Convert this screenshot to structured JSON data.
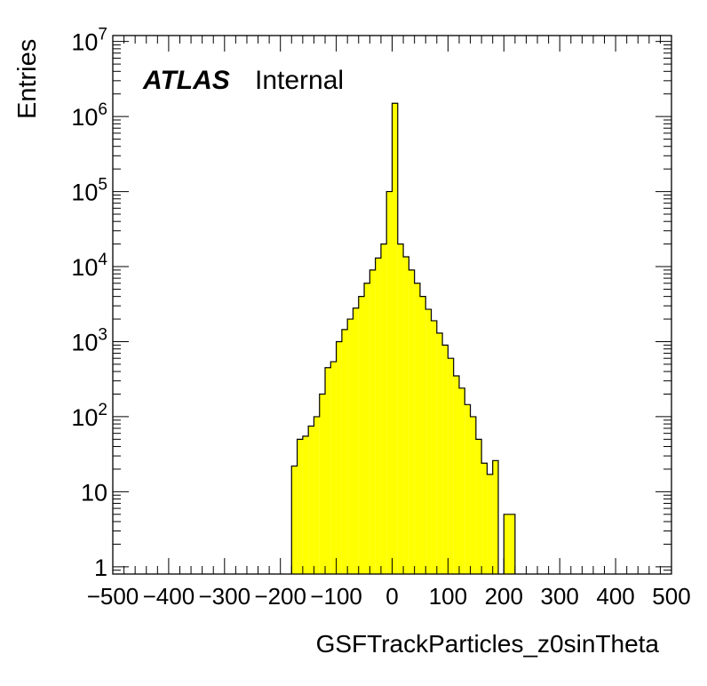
{
  "chart_data": {
    "type": "histogram",
    "title": "",
    "label_atlas": "ATLAS",
    "label_status": "Internal",
    "xlabel": "GSFTrackParticles_z0sinTheta",
    "ylabel": "Entries",
    "xlim": [
      -500,
      500
    ],
    "ylim": [
      0.8,
      12000000
    ],
    "yscale": "log",
    "grid": false,
    "fill_color": "#ffff00",
    "line_color": "#000000",
    "bin_width": 10,
    "xticks": [
      -500,
      -400,
      -300,
      -200,
      -100,
      0,
      100,
      200,
      300,
      400,
      500
    ],
    "xtick_labels": [
      "−500",
      "−400",
      "−300",
      "−200",
      "−100",
      "0",
      "100",
      "200",
      "300",
      "400",
      "500"
    ],
    "yticks": [
      {
        "value": 1,
        "base": "1",
        "exp": ""
      },
      {
        "value": 10,
        "base": "10",
        "exp": ""
      },
      {
        "value": 100,
        "base": "10",
        "exp": "2"
      },
      {
        "value": 1000,
        "base": "10",
        "exp": "3"
      },
      {
        "value": 10000,
        "base": "10",
        "exp": "4"
      },
      {
        "value": 100000,
        "base": "10",
        "exp": "5"
      },
      {
        "value": 1000000,
        "base": "10",
        "exp": "6"
      },
      {
        "value": 10000000,
        "base": "10",
        "exp": "7"
      }
    ],
    "bins": [
      {
        "x0": -180,
        "x1": -170,
        "y": 22
      },
      {
        "x0": -170,
        "x1": -160,
        "y": 50
      },
      {
        "x0": -160,
        "x1": -150,
        "y": 55
      },
      {
        "x0": -150,
        "x1": -140,
        "y": 75
      },
      {
        "x0": -140,
        "x1": -130,
        "y": 100
      },
      {
        "x0": -130,
        "x1": -120,
        "y": 200
      },
      {
        "x0": -120,
        "x1": -110,
        "y": 450
      },
      {
        "x0": -110,
        "x1": -100,
        "y": 540
      },
      {
        "x0": -100,
        "x1": -90,
        "y": 1000
      },
      {
        "x0": -90,
        "x1": -80,
        "y": 1450
      },
      {
        "x0": -80,
        "x1": -70,
        "y": 2000
      },
      {
        "x0": -70,
        "x1": -60,
        "y": 2800
      },
      {
        "x0": -60,
        "x1": -50,
        "y": 4000
      },
      {
        "x0": -50,
        "x1": -40,
        "y": 6000
      },
      {
        "x0": -40,
        "x1": -30,
        "y": 9000
      },
      {
        "x0": -30,
        "x1": -20,
        "y": 13000
      },
      {
        "x0": -20,
        "x1": -10,
        "y": 20000
      },
      {
        "x0": -10,
        "x1": 0,
        "y": 100000
      },
      {
        "x0": 0,
        "x1": 10,
        "y": 1500000
      },
      {
        "x0": 10,
        "x1": 20,
        "y": 20000
      },
      {
        "x0": 20,
        "x1": 30,
        "y": 13500
      },
      {
        "x0": 30,
        "x1": 40,
        "y": 9000
      },
      {
        "x0": 40,
        "x1": 50,
        "y": 6000
      },
      {
        "x0": 50,
        "x1": 60,
        "y": 4000
      },
      {
        "x0": 60,
        "x1": 70,
        "y": 2700
      },
      {
        "x0": 70,
        "x1": 80,
        "y": 1900
      },
      {
        "x0": 80,
        "x1": 90,
        "y": 1300
      },
      {
        "x0": 90,
        "x1": 100,
        "y": 900
      },
      {
        "x0": 100,
        "x1": 110,
        "y": 600
      },
      {
        "x0": 110,
        "x1": 120,
        "y": 350
      },
      {
        "x0": 120,
        "x1": 130,
        "y": 240
      },
      {
        "x0": 130,
        "x1": 140,
        "y": 145
      },
      {
        "x0": 140,
        "x1": 150,
        "y": 100
      },
      {
        "x0": 150,
        "x1": 160,
        "y": 50
      },
      {
        "x0": 160,
        "x1": 170,
        "y": 24
      },
      {
        "x0": 170,
        "x1": 180,
        "y": 17
      },
      {
        "x0": 180,
        "x1": 190,
        "y": 26
      },
      {
        "x0": 200,
        "x1": 210,
        "y": 5
      },
      {
        "x0": 210,
        "x1": 220,
        "y": 5
      }
    ]
  }
}
